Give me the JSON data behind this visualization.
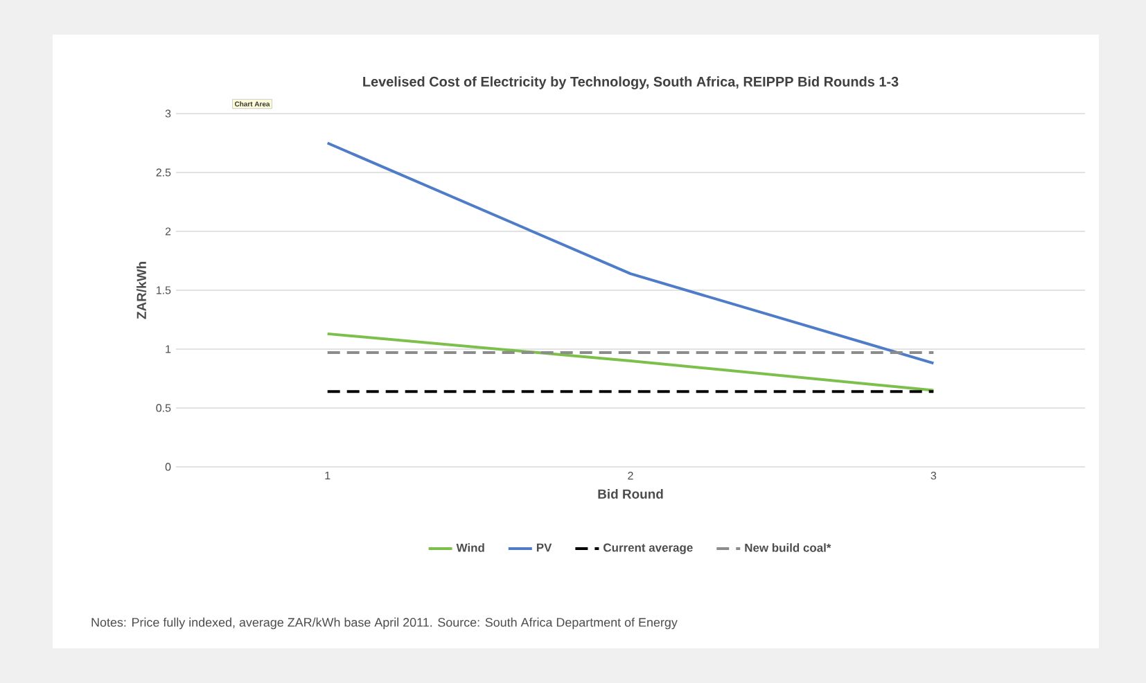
{
  "chart_data": {
    "type": "line",
    "title": "Levelised Cost of Electricity by Technology, South Africa, REIPPP Bid Rounds 1-3",
    "xlabel": "Bid Round",
    "ylabel": "ZAR/kWh",
    "categories": [
      "1",
      "2",
      "3"
    ],
    "series": [
      {
        "name": "Wind",
        "color": "#7cc04b",
        "values": [
          1.13,
          0.9,
          0.65
        ]
      },
      {
        "name": "PV",
        "color": "#4f7cc9",
        "values": [
          2.75,
          1.64,
          0.88
        ]
      },
      {
        "name": "Current average",
        "color": "#000000",
        "values": [
          0.64,
          0.64,
          0.64
        ],
        "line_style": "dashed"
      },
      {
        "name": "New build coal*",
        "color": "#8c8c8c",
        "values": [
          0.97,
          0.97,
          0.97
        ],
        "line_style": "dashed"
      }
    ],
    "ylim": [
      0,
      3
    ],
    "yticks": [
      0,
      0.5,
      1,
      1.5,
      2,
      2.5,
      3
    ],
    "grid": "y",
    "legend": "bottom",
    "marker": "none",
    "annotations": [
      "Chart Area",
      "Notes:  Price fully indexed, average ZAR/kWh base April 2011. Source: South Africa Department of Energy"
    ]
  }
}
